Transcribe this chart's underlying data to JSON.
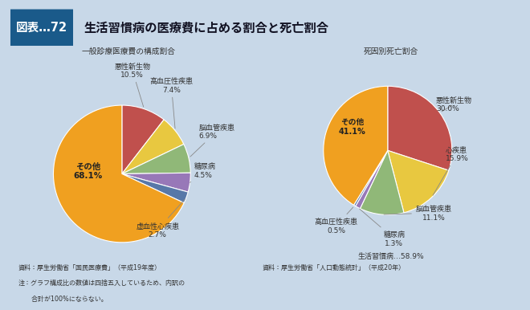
{
  "title": "生活習慣病の医療費に占める割合と死亡割合",
  "title_prefix": "図表…72",
  "bg_color": "#c8d8e8",
  "content_bg": "#e8e8d8",
  "header_bg": "#1a5a8a",
  "header_text": "#ffffff",
  "pie1_title": "一般診療医療費の構成割合",
  "pie1_values": [
    10.5,
    7.4,
    6.9,
    4.5,
    2.7,
    68.1
  ],
  "pie1_colors": [
    "#c0504d",
    "#e8c840",
    "#90b878",
    "#9878b8",
    "#5878a8",
    "#f0a020"
  ],
  "pie1_labels": [
    "悪性新生物",
    "高血圧性疾患",
    "脳血管疾患",
    "糖尿病",
    "虚血性心疾患",
    "その他"
  ],
  "pie1_pcts": [
    "10.5%",
    "7.4%",
    "6.9%",
    "4.5%",
    "2.7%",
    "68.1%"
  ],
  "pie2_title": "死因別死亡割合",
  "pie2_values": [
    30.0,
    15.9,
    11.1,
    1.3,
    0.5,
    41.1
  ],
  "pie2_colors": [
    "#c0504d",
    "#e8c840",
    "#90b878",
    "#9878b8",
    "#5878a8",
    "#f0a020"
  ],
  "pie2_labels": [
    "悪性新生物",
    "心疾患",
    "脳血管疾患",
    "糖尿病",
    "高血圧性疾患",
    "その他"
  ],
  "pie2_pcts": [
    "30.0%",
    "15.9%",
    "11.1%",
    "1.3%",
    "0.5%",
    "41.1%"
  ],
  "note1_line1": "資料：厚生労働省「国民医療費」（平成19年度）",
  "note1_line2": "注：グラフ構成比の数値は四捨五入しているため、内訳の",
  "note1_line3": "　　合計が100%にならない。",
  "note2": "資料：厚生労働省「人口動態統計」（平成20年）",
  "seikatsushukan": "生活習慣病…58.9%"
}
